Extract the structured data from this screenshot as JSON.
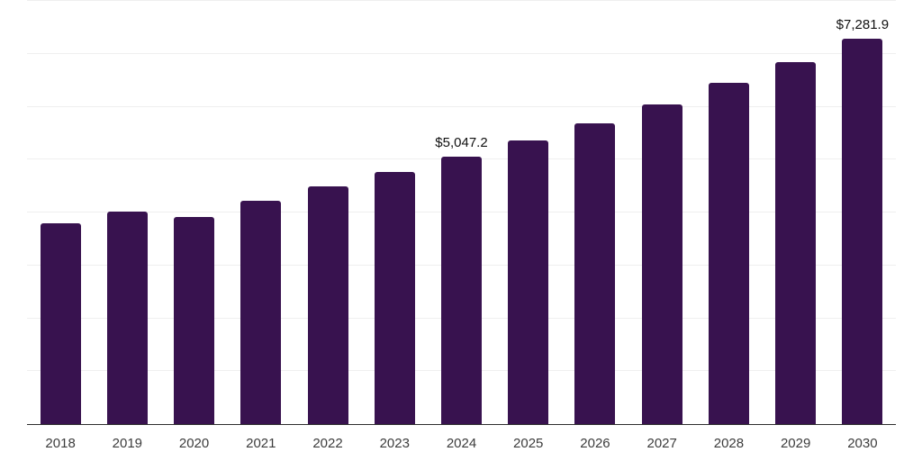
{
  "chart_data": {
    "type": "bar",
    "title": "",
    "xlabel": "",
    "ylabel": "",
    "categories": [
      "2018",
      "2019",
      "2020",
      "2021",
      "2022",
      "2023",
      "2024",
      "2025",
      "2026",
      "2027",
      "2028",
      "2029",
      "2030"
    ],
    "bars": [
      {
        "year": "2018",
        "value": 3800,
        "label": ""
      },
      {
        "year": "2019",
        "value": 4020,
        "label": ""
      },
      {
        "year": "2020",
        "value": 3920,
        "label": ""
      },
      {
        "year": "2021",
        "value": 4220,
        "label": ""
      },
      {
        "year": "2022",
        "value": 4500,
        "label": ""
      },
      {
        "year": "2023",
        "value": 4770,
        "label": ""
      },
      {
        "year": "2024",
        "value": 5047.2,
        "label": "$5,047.2"
      },
      {
        "year": "2025",
        "value": 5360,
        "label": ""
      },
      {
        "year": "2026",
        "value": 5690,
        "label": ""
      },
      {
        "year": "2027",
        "value": 6040,
        "label": ""
      },
      {
        "year": "2028",
        "value": 6445,
        "label": ""
      },
      {
        "year": "2029",
        "value": 6845,
        "label": ""
      },
      {
        "year": "2030",
        "value": 7281.9,
        "label": "$7,281.9"
      }
    ],
    "annotated_points": [
      {
        "year": "2024",
        "label": "$5,047.2"
      },
      {
        "year": "2030",
        "label": "$7,281.9"
      }
    ],
    "ylim": [
      0,
      8000
    ],
    "gridline_step": 1000,
    "grid": true,
    "legend": false,
    "y_axis_labels_visible": false,
    "colors": {
      "bar": "#38124F",
      "gridline": "#EFEFEF",
      "axis_line": "#2E2E2E",
      "value_label": "#111111",
      "tick_label": "#3C3C3C",
      "background": "#FFFFFF"
    }
  }
}
